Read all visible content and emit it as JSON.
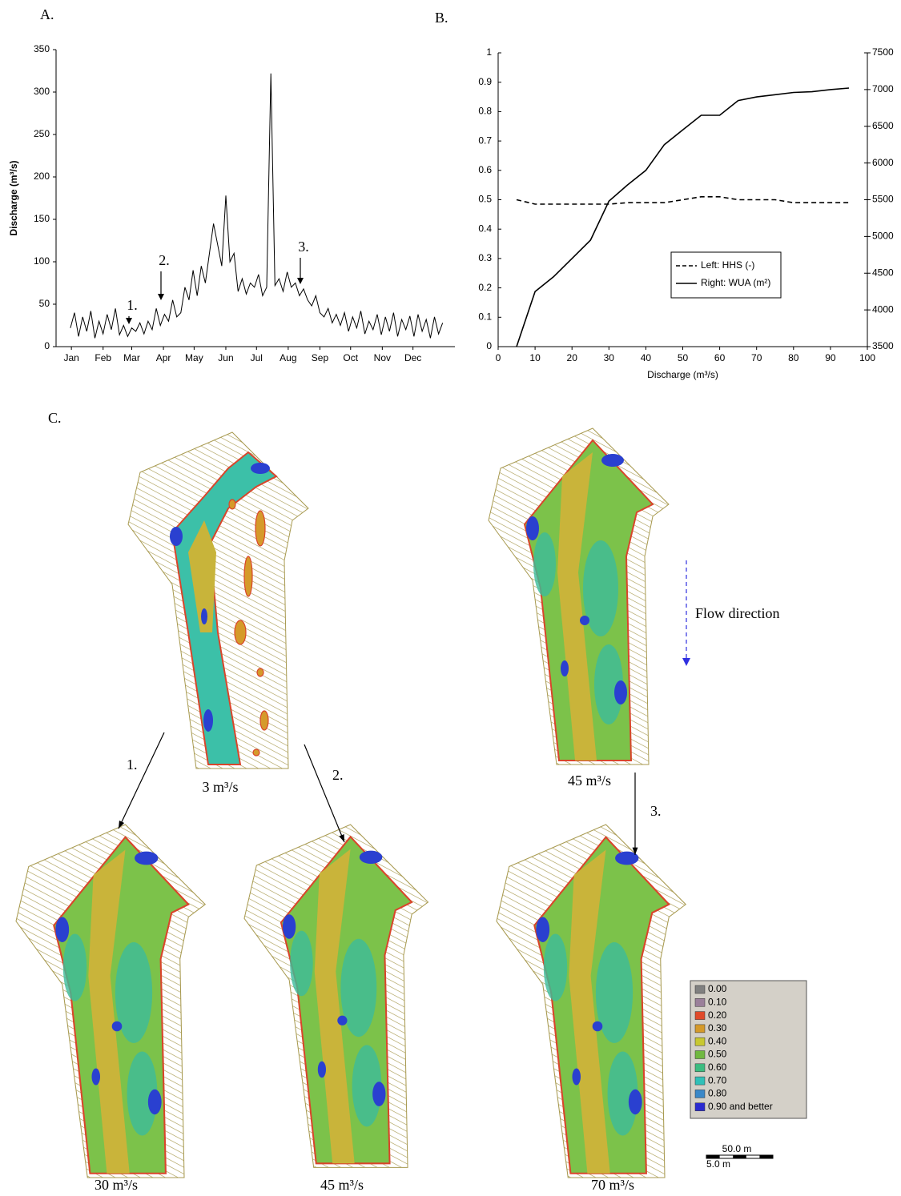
{
  "panel_labels": [
    "A.",
    "B.",
    "C."
  ],
  "chart_data": [
    {
      "type": "line",
      "ylabel": "Discharge (m³/s)",
      "x": [
        14,
        18,
        22,
        26,
        30,
        34,
        38,
        42,
        46,
        50,
        54,
        58,
        62,
        66,
        70,
        74,
        78,
        82,
        86,
        90,
        94,
        98,
        102,
        106,
        110,
        114,
        118,
        122,
        126,
        130,
        134,
        138,
        142,
        146,
        150,
        154,
        158,
        162,
        166,
        170,
        174,
        178,
        182,
        186,
        190,
        194,
        198,
        202,
        206,
        210,
        214,
        218,
        222,
        226,
        230,
        234,
        238,
        242,
        246,
        250,
        254,
        258,
        262,
        266,
        270,
        274,
        278,
        282,
        286,
        290,
        294,
        298,
        302,
        306,
        310,
        314,
        318,
        322,
        326,
        330,
        334,
        338,
        342,
        346,
        350,
        354,
        358,
        362,
        366,
        370,
        374,
        378
      ],
      "values": [
        22,
        40,
        12,
        35,
        18,
        42,
        10,
        30,
        15,
        38,
        20,
        45,
        14,
        25,
        12,
        22,
        18,
        28,
        15,
        30,
        20,
        45,
        25,
        38,
        30,
        55,
        35,
        40,
        70,
        55,
        90,
        60,
        95,
        75,
        110,
        145,
        120,
        95,
        178,
        100,
        110,
        65,
        80,
        62,
        75,
        70,
        85,
        60,
        70,
        322,
        72,
        80,
        65,
        88,
        70,
        75,
        60,
        68,
        55,
        48,
        60,
        40,
        35,
        45,
        28,
        38,
        25,
        40,
        18,
        35,
        22,
        42,
        15,
        30,
        20,
        38,
        14,
        35,
        18,
        40,
        12,
        32,
        20,
        36,
        12,
        38,
        18,
        32,
        10,
        35,
        15,
        28
      ],
      "color": "#000000",
      "xlim": [
        0,
        390
      ],
      "xticks": [
        {
          "value": 15,
          "label": "Jan"
        },
        {
          "value": 46,
          "label": "Feb"
        },
        {
          "value": 74,
          "label": "Mar"
        },
        {
          "value": 105,
          "label": "Apr"
        },
        {
          "value": 135,
          "label": "May"
        },
        {
          "value": 166,
          "label": "Jun"
        },
        {
          "value": 196,
          "label": "Jul"
        },
        {
          "value": 227,
          "label": "Aug"
        },
        {
          "value": 258,
          "label": "Sep"
        },
        {
          "value": 288,
          "label": "Oct"
        },
        {
          "value": 319,
          "label": "Nov"
        },
        {
          "value": 349,
          "label": "Dec"
        }
      ],
      "ylim": [
        0,
        350
      ],
      "yticks": [
        0,
        50,
        100,
        150,
        200,
        250,
        300,
        350
      ],
      "annotations": [
        "1.",
        "2.",
        "3."
      ]
    },
    {
      "type": "line",
      "xlabel": "Discharge (m³/s)",
      "x": [
        5,
        10,
        15,
        20,
        25,
        30,
        35,
        40,
        45,
        50,
        55,
        60,
        65,
        70,
        75,
        80,
        85,
        90,
        95
      ],
      "series": [
        {
          "name": "Left: HHS (-)",
          "color": "#000000",
          "dash": "dashed",
          "values": [
            0.5,
            0.485,
            0.485,
            0.485,
            0.485,
            0.485,
            0.49,
            0.49,
            0.49,
            0.5,
            0.51,
            0.51,
            0.5,
            0.5,
            0.5,
            0.49,
            0.49,
            0.49,
            0.49
          ]
        },
        {
          "name": "Right: WUA (m²)",
          "color": "#000000",
          "dash": "solid",
          "axis": "y2",
          "values": [
            3500,
            4250,
            4450,
            4700,
            4950,
            5480,
            5700,
            5900,
            6250,
            6450,
            6650,
            6650,
            6850,
            6900,
            6930,
            6960,
            6970,
            7000,
            7020
          ]
        }
      ],
      "xlim": [
        0,
        100
      ],
      "xticks": [
        0,
        10,
        20,
        30,
        40,
        50,
        60,
        70,
        80,
        90,
        100
      ],
      "ylim": [
        0,
        1
      ],
      "yticks": [
        0,
        0.1,
        0.2,
        0.3,
        0.4,
        0.5,
        0.6,
        0.7,
        0.8,
        0.9,
        1
      ],
      "y2lim": [
        3500,
        7500
      ],
      "y2ticks": [
        3500,
        4000,
        4500,
        5000,
        5500,
        6000,
        6500,
        7000,
        7500
      ],
      "legend": "right"
    }
  ],
  "maps": {
    "captions": [
      "3 m³/s",
      "45 m³/s",
      "30 m³/s",
      "45 m³/s",
      "70 m³/s"
    ],
    "transition_labels": [
      "1.",
      "2.",
      "3."
    ],
    "flow_direction": "Flow direction",
    "legend": [
      {
        "label": "0.00",
        "color": "#808080"
      },
      {
        "label": "0.10",
        "color": "#9a7f9a"
      },
      {
        "label": "0.20",
        "color": "#e04a2a"
      },
      {
        "label": "0.30",
        "color": "#d59a2a"
      },
      {
        "label": "0.40",
        "color": "#c8c830"
      },
      {
        "label": "0.50",
        "color": "#70b840"
      },
      {
        "label": "0.60",
        "color": "#3cbc80"
      },
      {
        "label": "0.70",
        "color": "#30c0b8"
      },
      {
        "label": "0.80",
        "color": "#3a88c8"
      },
      {
        "label": "0.90 and better",
        "color": "#2a2ad0"
      }
    ],
    "scale_bar": {
      "label": "50.0 m",
      "sublabel": "5.0 m"
    }
  }
}
